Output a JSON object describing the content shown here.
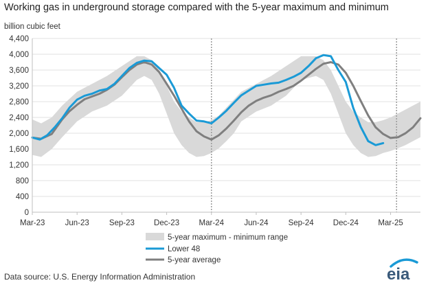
{
  "chart_data": {
    "type": "line",
    "title": "Working gas in underground storage compared with the 5-year maximum and minimum",
    "ylabel": "billion cubic feet",
    "xlabel": "",
    "ylim": [
      0,
      4400
    ],
    "yticks": [
      0,
      400,
      800,
      1200,
      1600,
      2000,
      2400,
      2800,
      3200,
      3600,
      4000,
      4400
    ],
    "ytick_labels": [
      "0",
      "400",
      "800",
      "1,200",
      "1,600",
      "2,000",
      "2,400",
      "2,800",
      "3,200",
      "3,600",
      "4,000",
      "4,400"
    ],
    "xlim": [
      0,
      26.0
    ],
    "xticks": [
      0,
      3,
      6,
      9,
      12,
      15,
      18,
      21,
      24
    ],
    "xtick_labels": [
      "Mar-23",
      "Jun-23",
      "Sep-23",
      "Dec-23",
      "Mar-24",
      "Jun-24",
      "Sep-24",
      "Dec-24",
      "Mar-25"
    ],
    "reference_lines": [
      12.0,
      24.4
    ],
    "grid": true,
    "legend_position": "bottom-center",
    "band": {
      "name": "5-year maximum - minimum range",
      "color": "#d9d9d9",
      "x": [
        0,
        0.6,
        1.3,
        2,
        3,
        4,
        5,
        6,
        7,
        7.5,
        8,
        8.5,
        9,
        9.5,
        10,
        10.5,
        11,
        11.5,
        12,
        12.5,
        13,
        13.5,
        14,
        15,
        16,
        17,
        18,
        19,
        19.5,
        20,
        20.5,
        21,
        21.5,
        22,
        22.5,
        23,
        23.5,
        24,
        24.5,
        25,
        25.5,
        26
      ],
      "max": [
        2350,
        2250,
        2400,
        2700,
        3050,
        3250,
        3450,
        3700,
        3950,
        3950,
        3850,
        3600,
        3200,
        2800,
        2550,
        2400,
        2280,
        2280,
        2330,
        2450,
        2650,
        2850,
        3050,
        3250,
        3450,
        3700,
        3950,
        3950,
        3850,
        3600,
        3200,
        2800,
        2550,
        2400,
        2280,
        2280,
        2330,
        2400,
        2500,
        2600,
        2700,
        2800
      ],
      "min": [
        1450,
        1400,
        1600,
        1900,
        2300,
        2550,
        2700,
        2950,
        3350,
        3450,
        3350,
        3000,
        2500,
        2000,
        1700,
        1500,
        1400,
        1420,
        1500,
        1620,
        1800,
        2000,
        2300,
        2550,
        2700,
        2950,
        3350,
        3450,
        3350,
        3000,
        2500,
        2000,
        1700,
        1500,
        1400,
        1420,
        1500,
        1550,
        1620,
        1700,
        1800,
        1900
      ]
    },
    "series": [
      {
        "name": "Lower 48",
        "color": "#1a9ad6",
        "x": [
          0,
          0.5,
          1,
          1.5,
          2,
          2.5,
          3,
          3.5,
          4,
          4.5,
          5,
          5.5,
          6,
          6.5,
          7,
          7.5,
          8,
          8.5,
          9,
          9.5,
          10,
          10.5,
          11,
          11.5,
          12,
          12.5,
          13,
          13.5,
          14,
          14.5,
          15,
          15.5,
          16,
          16.5,
          17,
          17.5,
          18,
          18.5,
          19,
          19.5,
          20,
          20.5,
          21,
          21.5,
          22,
          22.5,
          23,
          23.5
        ],
        "values": [
          1890,
          1840,
          1950,
          2150,
          2380,
          2650,
          2850,
          2950,
          3000,
          3080,
          3120,
          3250,
          3450,
          3650,
          3780,
          3840,
          3820,
          3650,
          3480,
          3150,
          2700,
          2500,
          2320,
          2300,
          2250,
          2400,
          2570,
          2770,
          2960,
          3080,
          3200,
          3230,
          3260,
          3280,
          3350,
          3430,
          3530,
          3700,
          3900,
          3980,
          3950,
          3600,
          3300,
          2640,
          2160,
          1800,
          1700,
          1750
        ]
      },
      {
        "name": "5-year average",
        "color": "#7f7f7f",
        "x": [
          0,
          0.6,
          1.3,
          2,
          2.5,
          3,
          3.5,
          4,
          4.5,
          5,
          5.5,
          6,
          6.5,
          7,
          7.5,
          8,
          8.5,
          9,
          9.5,
          10,
          10.5,
          11,
          11.5,
          12,
          12.5,
          13,
          13.5,
          14,
          14.5,
          15,
          15.5,
          16,
          16.5,
          17,
          17.5,
          18,
          18.5,
          19,
          19.5,
          20,
          20.5,
          21,
          21.5,
          22,
          22.5,
          23,
          23.5,
          24,
          24.5,
          25,
          25.5,
          26
        ],
        "values": [
          1890,
          1860,
          1980,
          2350,
          2560,
          2720,
          2860,
          2930,
          3000,
          3100,
          3230,
          3420,
          3600,
          3740,
          3800,
          3740,
          3550,
          3250,
          2950,
          2620,
          2300,
          2050,
          1920,
          1840,
          1950,
          2120,
          2320,
          2530,
          2700,
          2820,
          2900,
          2960,
          3050,
          3120,
          3200,
          3330,
          3480,
          3630,
          3760,
          3800,
          3740,
          3530,
          3200,
          2820,
          2450,
          2150,
          1980,
          1880,
          1900,
          2000,
          2150,
          2380
        ]
      }
    ]
  },
  "legend": {
    "band_label": "5-year maximum - minimum range",
    "lower48_label": "Lower 48",
    "avg_label": "5-year average"
  },
  "footer": {
    "source": "Data source:  U.S. Energy Information Administration",
    "logo_text": "eia"
  }
}
